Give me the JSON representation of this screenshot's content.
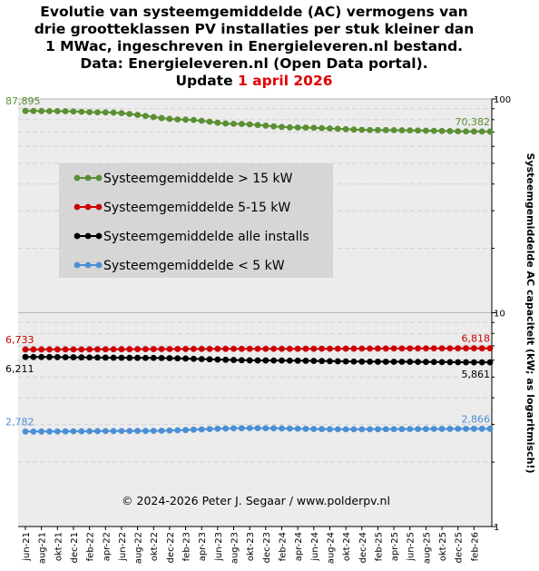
{
  "title": {
    "lines": [
      "Evolutie van systeemgemiddelde (AC) vermogens van",
      "drie grootteklassen PV installaties per stuk kleiner dan",
      "1 MWac, ingeschreven in Energieleveren.nl bestand.",
      "Data: Energieleveren.nl (Open Data portal)."
    ],
    "update_prefix": "Update ",
    "update_date": "1 april 2026"
  },
  "credit": "© 2024-2026 Peter J. Segaar / www.polderpv.nl",
  "colors": {
    "plot_bg": "#ececec",
    "gridline": "#d2d2d2",
    "legend_bg": "#d6d6d6"
  },
  "chart_data": {
    "type": "line",
    "ylabel": "Systeemgemiddelde AC capaciteit (kW; as logaritmisch!)",
    "y_scale": "log",
    "ylim": [
      1,
      100
    ],
    "y_ticks": [
      {
        "value": 1,
        "label": "1"
      },
      {
        "value": 10,
        "label": "10"
      },
      {
        "value": 100,
        "label": "100"
      }
    ],
    "grid": true,
    "legend_position": "upper-left",
    "x_tick_labels": [
      "jun-21",
      "aug-21",
      "okt-21",
      "dec-21",
      "feb-22",
      "apr-22",
      "jun-22",
      "aug-22",
      "okt-22",
      "dec-22",
      "feb-23",
      "apr-23",
      "jun-23",
      "aug-23",
      "okt-23",
      "dec-23",
      "feb-24",
      "apr-24",
      "jun-24",
      "aug-24",
      "okt-24",
      "dec-24",
      "feb-25",
      "apr-25",
      "jun-25",
      "aug-25",
      "okt-25",
      "dec-25",
      "feb-26"
    ],
    "n_points": 59,
    "series": [
      {
        "name": "Systeemgemiddelde > 15 kW",
        "color": "#5a8f32",
        "start_label": "87,895",
        "end_label": "70,382",
        "key_points": [
          [
            0,
            87.9
          ],
          [
            4,
            87.7
          ],
          [
            10,
            86.5
          ],
          [
            20,
            80.0
          ],
          [
            26,
            76.5
          ],
          [
            34,
            73.5
          ],
          [
            44,
            71.5
          ],
          [
            58,
            70.38
          ]
        ]
      },
      {
        "name": "Systeemgemiddelde 5-15 kW",
        "color": "#cc0000",
        "start_label": "6,733",
        "end_label": "6,818",
        "key_points": [
          [
            0,
            6.733
          ],
          [
            30,
            6.78
          ],
          [
            58,
            6.818
          ]
        ]
      },
      {
        "name": "Systeemgemiddelde alle installs",
        "color": "#000000",
        "start_label": "6,211",
        "end_label": "5,861",
        "key_points": [
          [
            0,
            6.211
          ],
          [
            15,
            6.15
          ],
          [
            30,
            5.98
          ],
          [
            45,
            5.9
          ],
          [
            58,
            5.861
          ]
        ]
      },
      {
        "name": "Systeemgemiddelde < 5 kW",
        "color": "#4a8fd6",
        "start_label": "2,782",
        "end_label": "2,866",
        "key_points": [
          [
            0,
            2.782
          ],
          [
            15,
            2.8
          ],
          [
            28,
            2.885
          ],
          [
            40,
            2.85
          ],
          [
            58,
            2.866
          ]
        ]
      }
    ]
  }
}
